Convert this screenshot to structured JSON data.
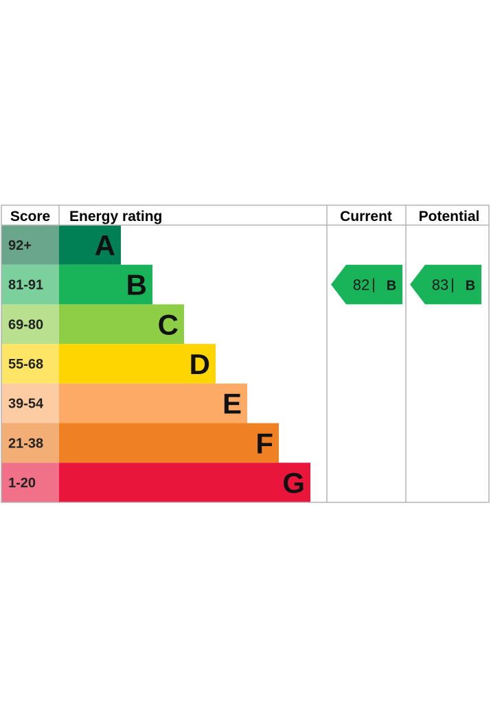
{
  "headers": {
    "score": "Score",
    "energy_rating": "Energy rating",
    "current": "Current",
    "potential": "Potential"
  },
  "chart_data": {
    "type": "bar",
    "bands": [
      {
        "letter": "A",
        "range": "92+",
        "bar_color": "#008054",
        "score_color": "#6aa68b"
      },
      {
        "letter": "B",
        "range": "81-91",
        "bar_color": "#19b459",
        "score_color": "#7cd09c"
      },
      {
        "letter": "C",
        "range": "69-80",
        "bar_color": "#8dce46",
        "score_color": "#b9e08f"
      },
      {
        "letter": "D",
        "range": "55-68",
        "bar_color": "#ffd500",
        "score_color": "#ffe566"
      },
      {
        "letter": "E",
        "range": "39-54",
        "bar_color": "#fcaa65",
        "score_color": "#fdcca3"
      },
      {
        "letter": "F",
        "range": "21-38",
        "bar_color": "#ef8023",
        "score_color": "#f3ae75"
      },
      {
        "letter": "G",
        "range": "1-20",
        "bar_color": "#e9153b",
        "score_color": "#f17189"
      }
    ],
    "current": {
      "score": 82,
      "band": "B",
      "color": "#19b459"
    },
    "potential": {
      "score": 83,
      "band": "B",
      "color": "#19b459"
    }
  },
  "colors": {
    "grid_line": "#b3b3b3",
    "arrow_separator": "|"
  }
}
